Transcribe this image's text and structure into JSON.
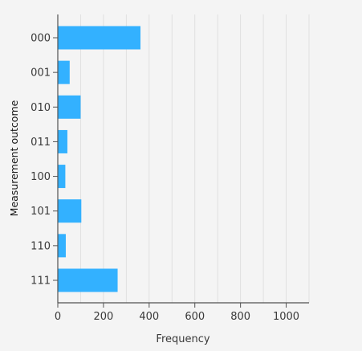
{
  "chart_data": {
    "type": "bar",
    "orientation": "horizontal",
    "categories": [
      "000",
      "001",
      "010",
      "011",
      "100",
      "101",
      "110",
      "111"
    ],
    "values": [
      362,
      52,
      100,
      42,
      33,
      103,
      35,
      262
    ],
    "xlabel": "Frequency",
    "ylabel": "Measurement outcome",
    "xlim": [
      0,
      1100
    ],
    "xticks": [
      0,
      200,
      400,
      600,
      800,
      1000
    ],
    "grid": "vertical",
    "legend": "none"
  },
  "colors": {
    "bar": "#33b1ff",
    "background": "#f4f4f4",
    "axis": "#525252",
    "grid": "#e0e0e0",
    "text": "#393939"
  }
}
